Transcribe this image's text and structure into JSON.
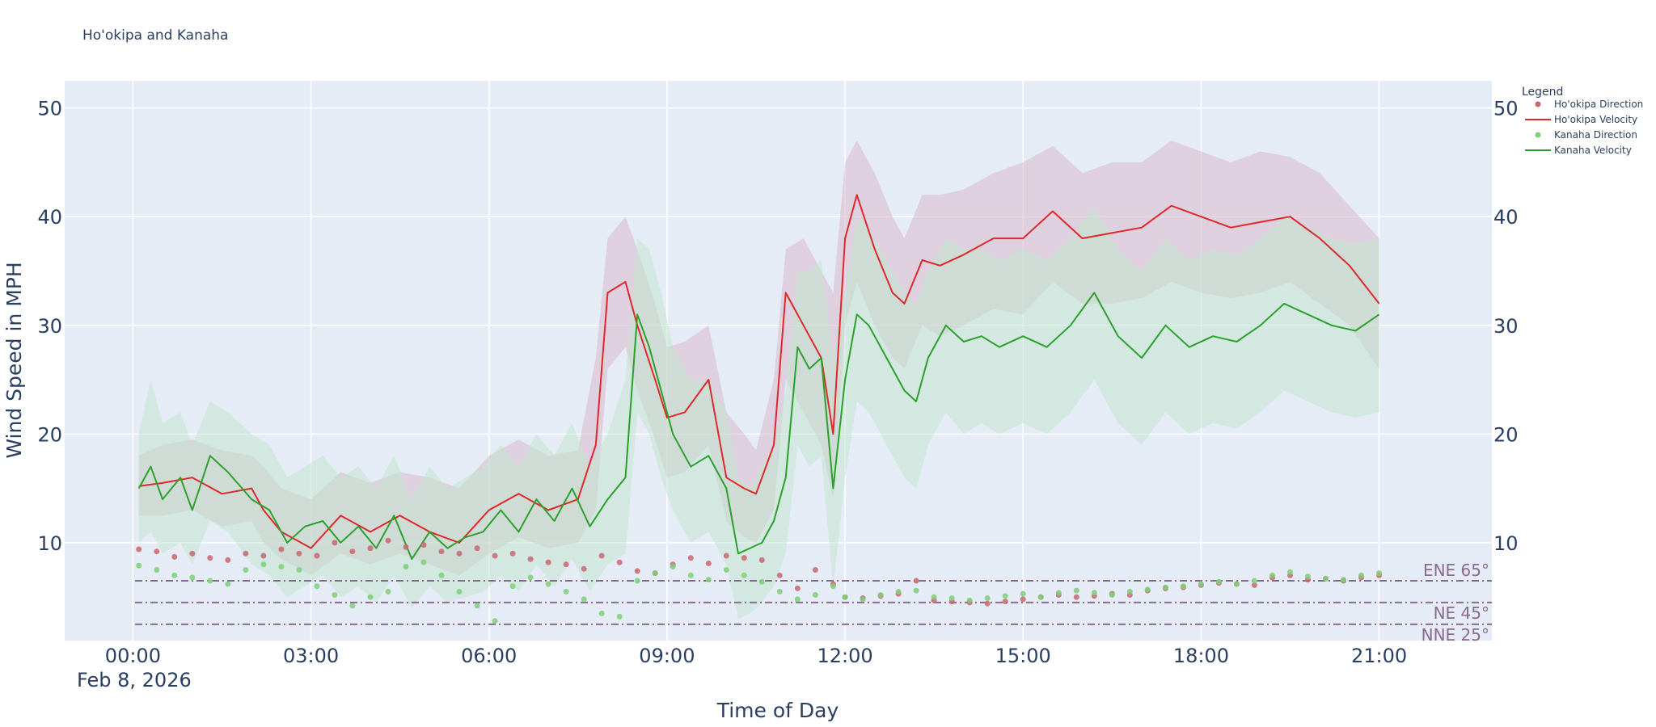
{
  "chart_data": {
    "type": "line",
    "title": "Ho'okipa and Kanaha",
    "xlabel": "Time of Day",
    "ylabel": "Wind Speed in MPH",
    "x_tick_labels": [
      "00:00",
      "03:00",
      "06:00",
      "09:00",
      "12:00",
      "15:00",
      "18:00",
      "21:00"
    ],
    "x_date_label": "Feb 8, 2026",
    "xlim_hours": [
      -1.15,
      22.9
    ],
    "ylim": [
      1,
      52.5
    ],
    "y_ticks": [
      10,
      20,
      30,
      40,
      50
    ],
    "grid": true,
    "legend": {
      "title": "Legend",
      "position": "right",
      "entries": [
        "Ho'okipa Direction",
        "Ho'okipa Velocity",
        "Kanaha Direction",
        "Kanaha Velocity"
      ]
    },
    "reference_lines": [
      {
        "label": "ENE 65°",
        "y": 6.5
      },
      {
        "label": "NE 45°",
        "y": 4.5
      },
      {
        "label": "NNE 25°",
        "y": 2.5
      }
    ],
    "colors": {
      "hookipa_velocity": "#e0282a",
      "hookipa_direction": "#c96670",
      "hookipa_band": "#d9b9cb",
      "kanaha_velocity": "#2ca02c",
      "kanaha_direction": "#7fcf77",
      "kanaha_band": "#c2e6d0",
      "plot_bg": "#e5ecf6",
      "reference": "#8a6a8f"
    },
    "series": [
      {
        "name": "Ho'okipa Velocity",
        "x": [
          0.1,
          0.5,
          1.0,
          1.5,
          2.0,
          2.2,
          2.5,
          3.0,
          3.5,
          4.0,
          4.5,
          5.0,
          5.5,
          6.0,
          6.5,
          7.0,
          7.5,
          7.8,
          8.0,
          8.3,
          8.5,
          8.8,
          9.0,
          9.3,
          9.7,
          10.0,
          10.3,
          10.5,
          10.8,
          11.0,
          11.3,
          11.6,
          11.8,
          12.0,
          12.2,
          12.5,
          12.8,
          13.0,
          13.3,
          13.6,
          14.0,
          14.5,
          15.0,
          15.5,
          16.0,
          16.5,
          17.0,
          17.5,
          18.0,
          18.5,
          19.0,
          19.5,
          20.0,
          20.5,
          21.0
        ],
        "y": [
          15.2,
          15.5,
          16.0,
          14.5,
          15.0,
          13.0,
          11.0,
          9.5,
          12.5,
          11.0,
          12.5,
          11.0,
          10.0,
          13.0,
          14.5,
          13.0,
          14.0,
          19.0,
          33.0,
          34.0,
          30.0,
          25.0,
          21.5,
          22.0,
          25.0,
          16.0,
          15.0,
          14.5,
          19.0,
          33.0,
          30.0,
          27.0,
          20.0,
          38.0,
          42.0,
          37.0,
          33.0,
          32.0,
          36.0,
          35.5,
          36.5,
          38.0,
          38.0,
          40.5,
          38.0,
          38.5,
          39.0,
          41.0,
          40.0,
          39.0,
          39.5,
          40.0,
          38.0,
          35.5,
          32.0
        ],
        "band_upper": [
          18.0,
          19.0,
          19.5,
          18.5,
          18.0,
          17.0,
          15.0,
          14.0,
          16.5,
          15.5,
          16.5,
          16.0,
          15.0,
          18.0,
          19.5,
          18.0,
          18.5,
          27.0,
          38.0,
          40.0,
          37.0,
          32.0,
          28.0,
          28.5,
          30.0,
          22.0,
          20.0,
          18.5,
          25.0,
          37.0,
          38.0,
          35.0,
          33.0,
          45.0,
          47.0,
          44.0,
          40.0,
          38.0,
          42.0,
          42.0,
          42.5,
          44.0,
          45.0,
          46.5,
          44.0,
          45.0,
          45.0,
          47.0,
          46.0,
          45.0,
          46.0,
          45.5,
          44.0,
          41.0,
          38.0
        ],
        "band_lower": [
          12.5,
          12.5,
          13.0,
          11.5,
          12.0,
          10.0,
          8.5,
          7.0,
          9.0,
          8.0,
          9.0,
          8.0,
          7.0,
          9.0,
          10.5,
          9.5,
          10.0,
          13.0,
          26.0,
          28.0,
          24.0,
          19.5,
          16.0,
          16.5,
          19.0,
          12.0,
          10.5,
          10.0,
          13.0,
          25.0,
          22.0,
          19.0,
          14.0,
          30.0,
          34.0,
          30.0,
          27.0,
          26.0,
          30.0,
          29.0,
          30.0,
          31.5,
          31.0,
          34.0,
          32.0,
          32.0,
          32.5,
          34.0,
          33.0,
          32.5,
          33.0,
          34.0,
          32.0,
          30.0,
          26.0
        ]
      },
      {
        "name": "Kanaha Velocity",
        "x": [
          0.1,
          0.3,
          0.5,
          0.8,
          1.0,
          1.3,
          1.6,
          2.0,
          2.3,
          2.6,
          2.9,
          3.2,
          3.5,
          3.8,
          4.1,
          4.4,
          4.7,
          5.0,
          5.3,
          5.6,
          5.9,
          6.2,
          6.5,
          6.8,
          7.1,
          7.4,
          7.7,
          8.0,
          8.3,
          8.5,
          8.7,
          8.9,
          9.1,
          9.4,
          9.7,
          10.0,
          10.2,
          10.4,
          10.6,
          10.8,
          11.0,
          11.2,
          11.4,
          11.6,
          11.8,
          12.0,
          12.2,
          12.4,
          12.6,
          12.8,
          13.0,
          13.2,
          13.4,
          13.7,
          14.0,
          14.3,
          14.6,
          15.0,
          15.4,
          15.8,
          16.2,
          16.6,
          17.0,
          17.4,
          17.8,
          18.2,
          18.6,
          19.0,
          19.4,
          19.8,
          20.2,
          20.6,
          21.0
        ],
        "y": [
          15.0,
          17.0,
          14.0,
          16.0,
          13.0,
          18.0,
          16.5,
          14.0,
          13.0,
          10.0,
          11.5,
          12.0,
          10.0,
          11.5,
          9.5,
          12.5,
          8.5,
          11.0,
          9.5,
          10.5,
          11.0,
          13.0,
          11.0,
          14.0,
          12.0,
          15.0,
          11.5,
          14.0,
          16.0,
          31.0,
          28.0,
          24.0,
          20.0,
          17.0,
          18.0,
          15.0,
          9.0,
          9.5,
          10.0,
          12.0,
          16.0,
          28.0,
          26.0,
          27.0,
          15.0,
          25.0,
          31.0,
          30.0,
          28.0,
          26.0,
          24.0,
          23.0,
          27.0,
          30.0,
          28.5,
          29.0,
          28.0,
          29.0,
          28.0,
          30.0,
          33.0,
          29.0,
          27.0,
          30.0,
          28.0,
          29.0,
          28.5,
          30.0,
          32.0,
          31.0,
          30.0,
          29.5,
          31.0
        ],
        "band_upper": [
          20.0,
          25.0,
          21.0,
          22.0,
          19.0,
          23.0,
          22.0,
          20.0,
          19.0,
          16.0,
          17.0,
          18.0,
          16.0,
          17.0,
          15.0,
          18.0,
          14.0,
          17.0,
          15.0,
          16.0,
          17.0,
          19.0,
          17.0,
          20.0,
          18.0,
          21.0,
          17.0,
          20.0,
          25.0,
          38.0,
          37.0,
          33.0,
          28.0,
          25.0,
          25.0,
          22.0,
          16.0,
          15.0,
          17.0,
          19.0,
          24.0,
          35.0,
          35.0,
          36.0,
          27.0,
          33.0,
          40.0,
          39.0,
          37.0,
          35.0,
          33.0,
          32.0,
          35.0,
          38.0,
          37.0,
          37.0,
          36.0,
          37.0,
          36.0,
          38.0,
          41.0,
          37.0,
          35.0,
          38.0,
          36.0,
          37.0,
          36.5,
          38.0,
          40.0,
          39.0,
          38.0,
          37.5,
          38.0
        ],
        "band_lower": [
          10.0,
          11.0,
          9.0,
          10.0,
          8.0,
          12.0,
          11.0,
          8.0,
          7.0,
          5.0,
          6.0,
          7.0,
          5.0,
          6.0,
          4.5,
          7.0,
          4.0,
          6.0,
          4.5,
          5.0,
          5.5,
          7.0,
          5.5,
          8.0,
          6.0,
          8.5,
          5.5,
          8.0,
          9.0,
          22.0,
          20.0,
          16.0,
          13.0,
          10.0,
          11.0,
          8.0,
          3.0,
          3.5,
          4.5,
          6.0,
          9.0,
          19.0,
          17.0,
          18.0,
          6.0,
          16.0,
          23.0,
          22.0,
          20.0,
          18.0,
          16.0,
          15.0,
          19.0,
          22.0,
          20.0,
          21.0,
          20.0,
          21.0,
          20.0,
          22.0,
          25.0,
          21.0,
          19.0,
          22.0,
          20.0,
          21.0,
          20.5,
          22.0,
          24.0,
          23.0,
          22.0,
          21.5,
          22.0
        ]
      },
      {
        "name": "Ho'okipa Direction",
        "x": [
          0.1,
          0.4,
          0.7,
          1.0,
          1.3,
          1.6,
          1.9,
          2.2,
          2.5,
          2.8,
          3.1,
          3.4,
          3.7,
          4.0,
          4.3,
          4.6,
          4.9,
          5.2,
          5.5,
          5.8,
          6.1,
          6.4,
          6.7,
          7.0,
          7.3,
          7.6,
          7.9,
          8.2,
          8.5,
          8.8,
          9.1,
          9.4,
          9.7,
          10.0,
          10.3,
          10.6,
          10.9,
          11.2,
          11.5,
          11.8,
          12.0,
          12.3,
          12.6,
          12.9,
          13.2,
          13.5,
          13.8,
          14.1,
          14.4,
          14.7,
          15.0,
          15.3,
          15.6,
          15.9,
          16.2,
          16.5,
          16.8,
          17.1,
          17.4,
          17.7,
          18.0,
          18.3,
          18.6,
          18.9,
          19.2,
          19.5,
          19.8,
          20.1,
          20.4,
          20.7,
          21.0
        ],
        "y": [
          9.4,
          9.2,
          8.7,
          9.0,
          8.6,
          8.4,
          9.0,
          8.8,
          9.4,
          9.0,
          8.8,
          10.0,
          9.2,
          9.5,
          10.2,
          9.6,
          9.8,
          9.2,
          9.0,
          9.5,
          8.8,
          9.0,
          8.5,
          8.2,
          8.0,
          7.6,
          8.8,
          8.2,
          7.4,
          7.2,
          8.0,
          8.6,
          8.1,
          8.8,
          8.6,
          8.4,
          7.0,
          5.8,
          7.5,
          6.2,
          5.0,
          4.9,
          5.1,
          5.3,
          6.5,
          4.7,
          4.6,
          4.5,
          4.4,
          4.6,
          4.8,
          5.0,
          5.2,
          5.0,
          5.1,
          5.3,
          5.2,
          5.6,
          5.8,
          5.9,
          6.1,
          6.3,
          6.2,
          6.1,
          6.8,
          7.0,
          6.6,
          6.7,
          6.5,
          6.8,
          7.0
        ]
      },
      {
        "name": "Kanaha Direction",
        "x": [
          0.1,
          0.4,
          0.7,
          1.0,
          1.3,
          1.6,
          1.9,
          2.2,
          2.5,
          2.8,
          3.1,
          3.4,
          3.7,
          4.0,
          4.3,
          4.6,
          4.9,
          5.2,
          5.5,
          5.8,
          6.1,
          6.4,
          6.7,
          7.0,
          7.3,
          7.6,
          7.9,
          8.2,
          8.5,
          8.8,
          9.1,
          9.4,
          9.7,
          10.0,
          10.3,
          10.6,
          10.9,
          11.2,
          11.5,
          11.8,
          12.0,
          12.3,
          12.6,
          12.9,
          13.2,
          13.5,
          13.8,
          14.1,
          14.4,
          14.7,
          15.0,
          15.3,
          15.6,
          15.9,
          16.2,
          16.5,
          16.8,
          17.1,
          17.4,
          17.7,
          18.0,
          18.3,
          18.6,
          18.9,
          19.2,
          19.5,
          19.8,
          20.1,
          20.4,
          20.7,
          21.0
        ],
        "y": [
          7.9,
          7.5,
          7.0,
          6.8,
          6.5,
          6.2,
          7.5,
          8.0,
          7.8,
          7.5,
          6.0,
          5.2,
          4.2,
          5.0,
          5.5,
          7.8,
          8.2,
          7.0,
          5.5,
          4.2,
          2.8,
          6.0,
          6.8,
          6.2,
          5.5,
          4.8,
          3.5,
          3.2,
          6.5,
          7.2,
          7.8,
          7.0,
          6.6,
          7.5,
          7.0,
          6.4,
          5.5,
          4.8,
          5.2,
          6.0,
          5.0,
          4.8,
          5.2,
          5.5,
          5.6,
          5.0,
          4.9,
          4.7,
          4.9,
          5.1,
          5.3,
          5.0,
          5.4,
          5.6,
          5.4,
          5.2,
          5.5,
          5.7,
          5.9,
          6.0,
          6.2,
          6.4,
          6.2,
          6.5,
          7.0,
          7.3,
          6.9,
          6.7,
          6.6,
          7.0,
          7.2
        ]
      }
    ]
  }
}
